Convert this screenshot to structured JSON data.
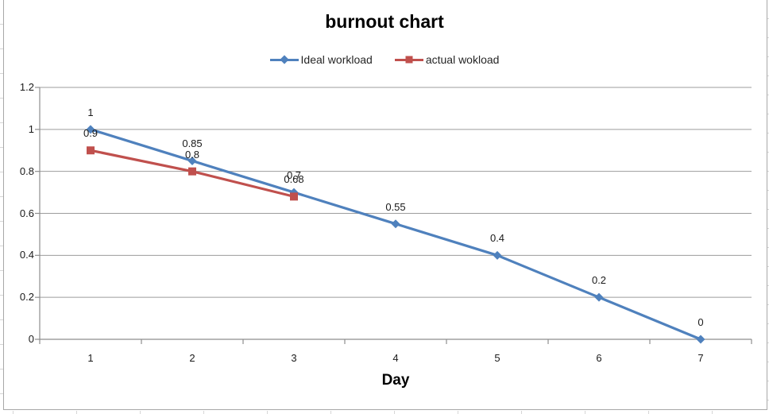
{
  "colors": {
    "ideal_series": "#4F81BD",
    "actual_series": "#C0504D",
    "gridline": "#9C9C9C",
    "axis": "#8E8E8E",
    "chart_border": "#A8A8A8",
    "label_text": "#1A1A1A",
    "sheet_gridline": "#D6D6D6"
  },
  "chart_data": {
    "type": "line",
    "title": "burnout chart",
    "xlabel": "Day",
    "ylabel": "",
    "x_ticks": [
      "1",
      "2",
      "3",
      "4",
      "5",
      "6",
      "7"
    ],
    "y_ticks": [
      "0",
      "0.2",
      "0.4",
      "0.6",
      "0.8",
      "1",
      "1.2"
    ],
    "ylim": [
      0,
      1.2
    ],
    "grid": true,
    "legend_position": "top",
    "series": [
      {
        "name": "Ideal workload",
        "color": "#4F81BD",
        "marker": "diamond",
        "x": [
          1,
          2,
          3,
          4,
          5,
          6,
          7
        ],
        "values": [
          1,
          0.85,
          0.7,
          0.55,
          0.4,
          0.2,
          0
        ],
        "labels": [
          "1",
          "0.85",
          "0.7",
          "0.55",
          "0.4",
          "0.2",
          "0"
        ]
      },
      {
        "name": "actual wokload",
        "color": "#C0504D",
        "marker": "square",
        "x": [
          1,
          2,
          3
        ],
        "values": [
          0.9,
          0.8,
          0.68
        ],
        "labels": [
          "0.9",
          "0.8",
          "0.68"
        ]
      }
    ]
  }
}
